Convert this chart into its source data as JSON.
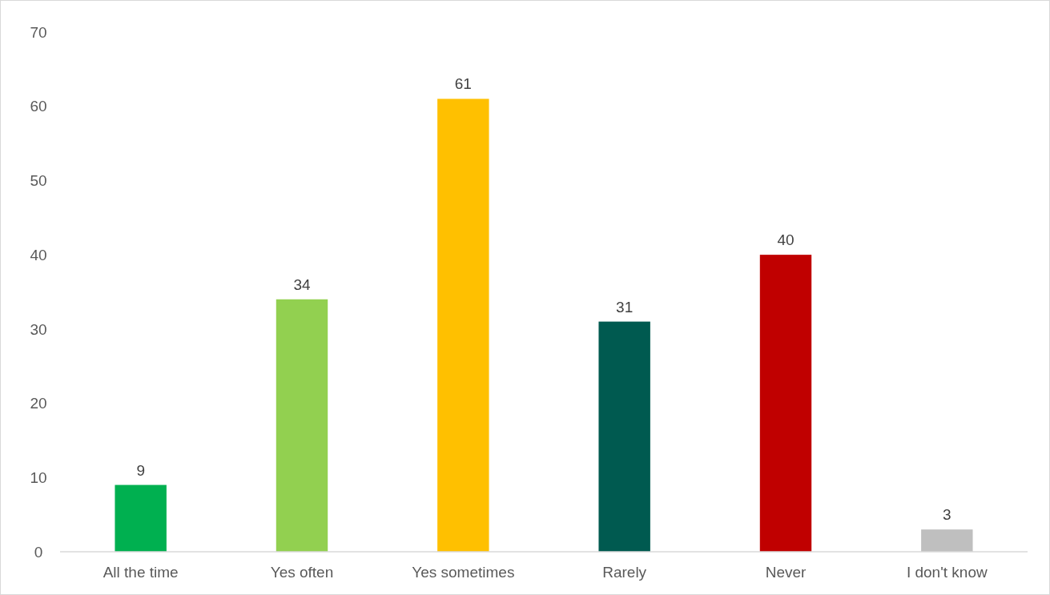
{
  "chart_data": {
    "type": "bar",
    "categories": [
      "All the time",
      "Yes often",
      "Yes sometimes",
      "Rarely",
      "Never",
      "I don't know"
    ],
    "values": [
      9,
      34,
      61,
      31,
      40,
      3
    ],
    "colors": [
      "#00b050",
      "#92d050",
      "#ffc000",
      "#005a50",
      "#c00000",
      "#bfbfbf"
    ],
    "ylim": [
      0,
      70
    ],
    "yticks": [
      0,
      10,
      20,
      30,
      40,
      50,
      60,
      70
    ],
    "data_labels": true,
    "grid": false
  }
}
